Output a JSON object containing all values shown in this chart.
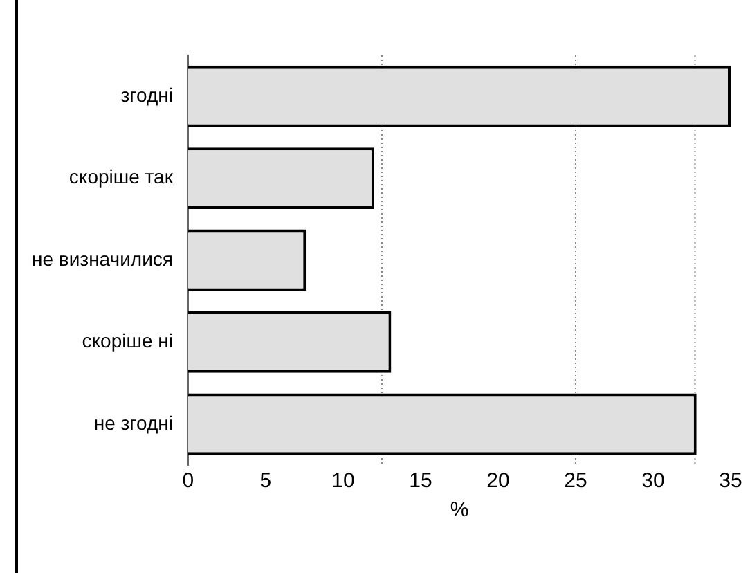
{
  "chart_data": {
    "type": "bar",
    "orientation": "horizontal",
    "xlabel": "%",
    "categories": [
      "згодні",
      "скоріше так",
      "не визначилися",
      "скоріше ні",
      "не згодні"
    ],
    "values": [
      35,
      12,
      7.6,
      13.1,
      32.8
    ],
    "color": "#e0e0e0",
    "xlim": [
      0,
      35
    ],
    "xticks": [
      0,
      5,
      10,
      15,
      20,
      25,
      30,
      35
    ],
    "grid": false,
    "legend": false,
    "ref_lines": [
      {
        "axis": "x",
        "value": 12.5,
        "line_style": "dotted",
        "color": "#888888"
      },
      {
        "axis": "x",
        "value": 25,
        "line_style": "dotted",
        "color": "#888888"
      },
      {
        "axis": "x",
        "value": 32.7,
        "line_style": "dotted",
        "color": "#888888"
      }
    ]
  }
}
